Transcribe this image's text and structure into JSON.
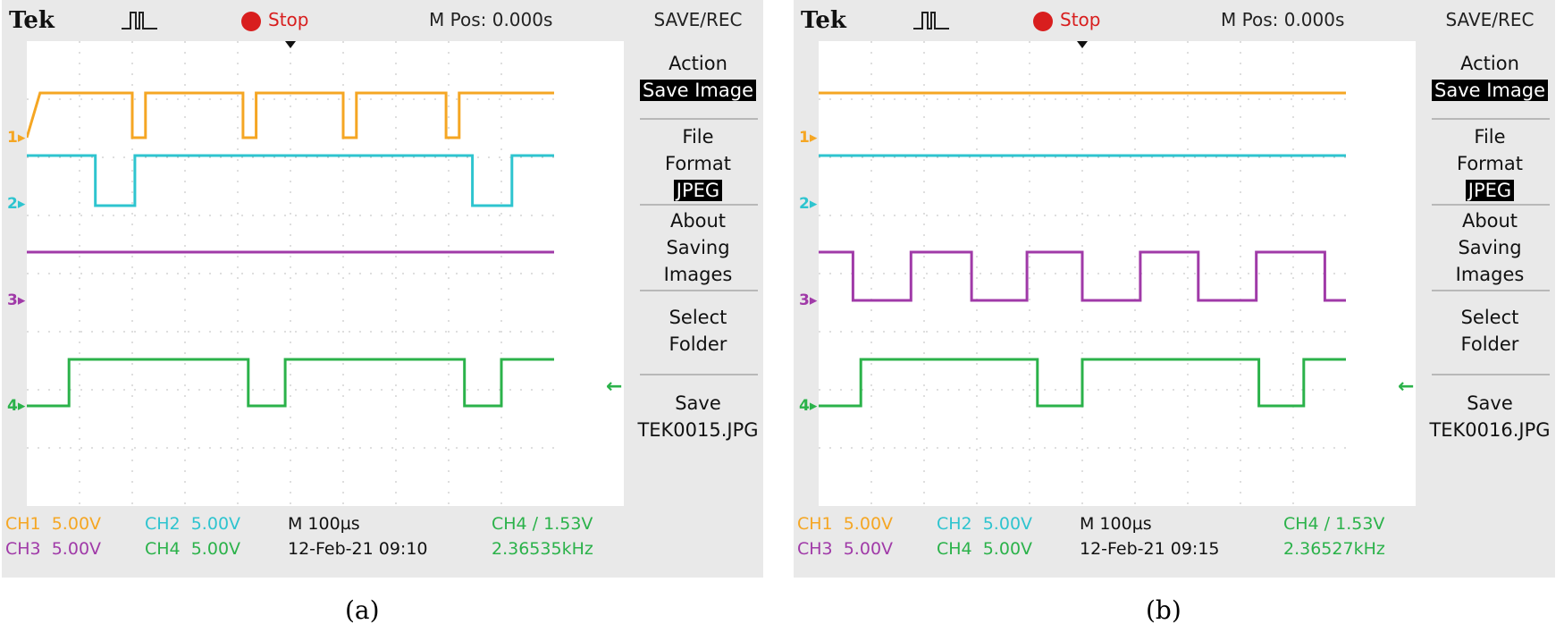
{
  "colors": {
    "ch1": "#f5a623",
    "ch2": "#2ec4cf",
    "ch3": "#a03aa8",
    "ch4": "#2bb24a",
    "stop": "#d81e1e",
    "grid": "#bdbdbd"
  },
  "scopes": [
    {
      "brand": "Tek",
      "trigger_icon": "pulse-trigger-icon",
      "run_state": "Stop",
      "mpos": "M Pos: 0.000s",
      "menu_title": "SAVE/REC",
      "menu": {
        "action_label": "Action",
        "action_value": "Save Image",
        "file_format_label_1": "File",
        "file_format_label_2": "Format",
        "file_format_value": "JPEG",
        "about_1": "About",
        "about_2": "Saving",
        "about_3": "Images",
        "select_1": "Select",
        "select_2": "Folder",
        "save_1": "Save",
        "save_2": "TEK0015.JPG"
      },
      "channel_markers": [
        "1",
        "2",
        "3",
        "4"
      ],
      "status": {
        "ch1": "CH1  5.00V",
        "ch2": "CH2  5.00V",
        "ch3": "CH3  5.00V",
        "ch4": "CH4  5.00V",
        "timebase": "M 100µs",
        "datetime": "12-Feb-21 09:10",
        "trigger": "CH4 ∕ 1.53V",
        "frequency": "2.36535kHz"
      },
      "waveforms": {
        "ch1": [
          [
            0,
            0
          ],
          [
            0.025,
            1
          ],
          [
            0.2,
            1
          ],
          [
            0.2,
            0
          ],
          [
            0.225,
            0
          ],
          [
            0.225,
            1
          ],
          [
            0.41,
            1
          ],
          [
            0.41,
            0
          ],
          [
            0.435,
            0
          ],
          [
            0.435,
            1
          ],
          [
            0.6,
            1
          ],
          [
            0.6,
            0
          ],
          [
            0.625,
            0
          ],
          [
            0.625,
            1
          ],
          [
            0.795,
            1
          ],
          [
            0.795,
            0
          ],
          [
            0.82,
            0
          ],
          [
            0.82,
            1
          ],
          [
            1,
            1
          ]
        ],
        "ch2": [
          [
            0,
            1
          ],
          [
            0.13,
            1
          ],
          [
            0.13,
            0
          ],
          [
            0.205,
            0
          ],
          [
            0.205,
            1
          ],
          [
            0.845,
            1
          ],
          [
            0.845,
            0
          ],
          [
            0.92,
            0
          ],
          [
            0.92,
            1
          ],
          [
            1,
            1
          ]
        ],
        "ch3": [
          [
            0,
            1
          ],
          [
            1,
            1
          ]
        ],
        "ch4": [
          [
            0,
            0
          ],
          [
            0.08,
            0
          ],
          [
            0.08,
            1
          ],
          [
            0.42,
            1
          ],
          [
            0.42,
            0
          ],
          [
            0.49,
            0
          ],
          [
            0.49,
            1
          ],
          [
            0.83,
            1
          ],
          [
            0.83,
            0
          ],
          [
            0.9,
            0
          ],
          [
            0.9,
            1
          ],
          [
            1,
            1
          ]
        ]
      },
      "caption": "(a)"
    },
    {
      "brand": "Tek",
      "trigger_icon": "pulse-trigger-icon",
      "run_state": "Stop",
      "mpos": "M Pos: 0.000s",
      "menu_title": "SAVE/REC",
      "menu": {
        "action_label": "Action",
        "action_value": "Save Image",
        "file_format_label_1": "File",
        "file_format_label_2": "Format",
        "file_format_value": "JPEG",
        "about_1": "About",
        "about_2": "Saving",
        "about_3": "Images",
        "select_1": "Select",
        "select_2": "Folder",
        "save_1": "Save",
        "save_2": "TEK0016.JPG"
      },
      "channel_markers": [
        "1",
        "2",
        "3",
        "4"
      ],
      "status": {
        "ch1": "CH1  5.00V",
        "ch2": "CH2  5.00V",
        "ch3": "CH3  5.00V",
        "ch4": "CH4  5.00V",
        "timebase": "M 100µs",
        "datetime": "12-Feb-21 09:15",
        "trigger": "CH4 ∕ 1.53V",
        "frequency": "2.36527kHz"
      },
      "waveforms": {
        "ch1": [
          [
            0,
            1
          ],
          [
            1,
            1
          ]
        ],
        "ch2": [
          [
            0,
            1
          ],
          [
            1,
            1
          ]
        ],
        "ch3": [
          [
            0,
            1
          ],
          [
            0.065,
            1
          ],
          [
            0.065,
            0
          ],
          [
            0.175,
            0
          ],
          [
            0.175,
            1
          ],
          [
            0.29,
            1
          ],
          [
            0.29,
            0
          ],
          [
            0.395,
            0
          ],
          [
            0.395,
            1
          ],
          [
            0.5,
            1
          ],
          [
            0.5,
            0
          ],
          [
            0.61,
            0
          ],
          [
            0.61,
            1
          ],
          [
            0.72,
            1
          ],
          [
            0.72,
            0
          ],
          [
            0.83,
            0
          ],
          [
            0.83,
            1
          ],
          [
            0.96,
            1
          ],
          [
            0.96,
            0
          ],
          [
            1,
            0
          ]
        ],
        "ch4": [
          [
            0,
            0
          ],
          [
            0.08,
            0
          ],
          [
            0.08,
            1
          ],
          [
            0.415,
            1
          ],
          [
            0.415,
            0
          ],
          [
            0.5,
            0
          ],
          [
            0.5,
            1
          ],
          [
            0.835,
            1
          ],
          [
            0.835,
            0
          ],
          [
            0.92,
            0
          ],
          [
            0.92,
            1
          ],
          [
            1,
            1
          ]
        ]
      },
      "caption": "(b)"
    }
  ]
}
